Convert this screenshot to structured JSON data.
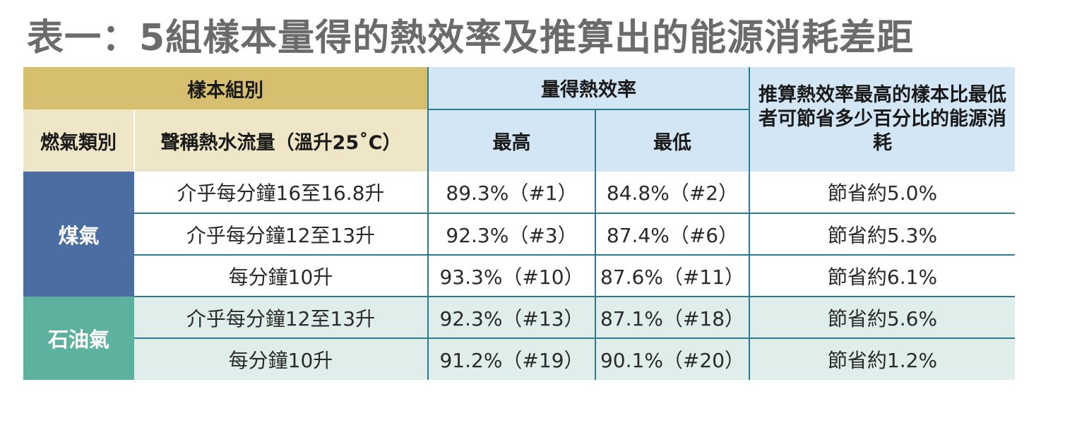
{
  "title": "表一：5組樣本量得的熱效率及推算出的能源消耗差距",
  "header": {
    "sample_group": "樣本組別",
    "measured_efficiency": "量得熱效率",
    "savings_header": "推算熱效率最高的樣本比最低者可節省多少百分比的能源消耗",
    "gas_type": "燃氣類別",
    "flow_rate": "聲稱熱水流量（溫升25˚C）",
    "highest": "最高",
    "lowest": "最低"
  },
  "groups": [
    {
      "gas": "煤氣",
      "rows": [
        {
          "flow": "介乎每分鐘16至16.8升",
          "high": "89.3%（#1）",
          "low": "84.8%（#2）",
          "saving": "節省約5.0%"
        },
        {
          "flow": "介乎每分鐘12至13升",
          "high": "92.3%（#3）",
          "low": "87.4%（#6）",
          "saving": "節省約5.3%"
        },
        {
          "flow": "每分鐘10升",
          "high": "93.3%（#10）",
          "low": "87.6%（#11）",
          "saving": "節省約6.1%"
        }
      ]
    },
    {
      "gas": "石油氣",
      "rows": [
        {
          "flow": "介乎每分鐘12至13升",
          "high": "92.3%（#13）",
          "low": "87.1%（#18）",
          "saving": "節省約5.6%"
        },
        {
          "flow": "每分鐘10升",
          "high": "91.2%（#19）",
          "low": "90.1%（#20）",
          "saving": "節省約1.2%"
        }
      ]
    }
  ],
  "colors": {
    "gold": "#d6bf6f",
    "cream": "#efe6c7",
    "lightblue": "#d3e6f5",
    "coal_gas": "#4a6ea1",
    "lpg": "#5db29f",
    "lpg_rows": "#dfeeea",
    "rule": "#2c7a8c"
  }
}
